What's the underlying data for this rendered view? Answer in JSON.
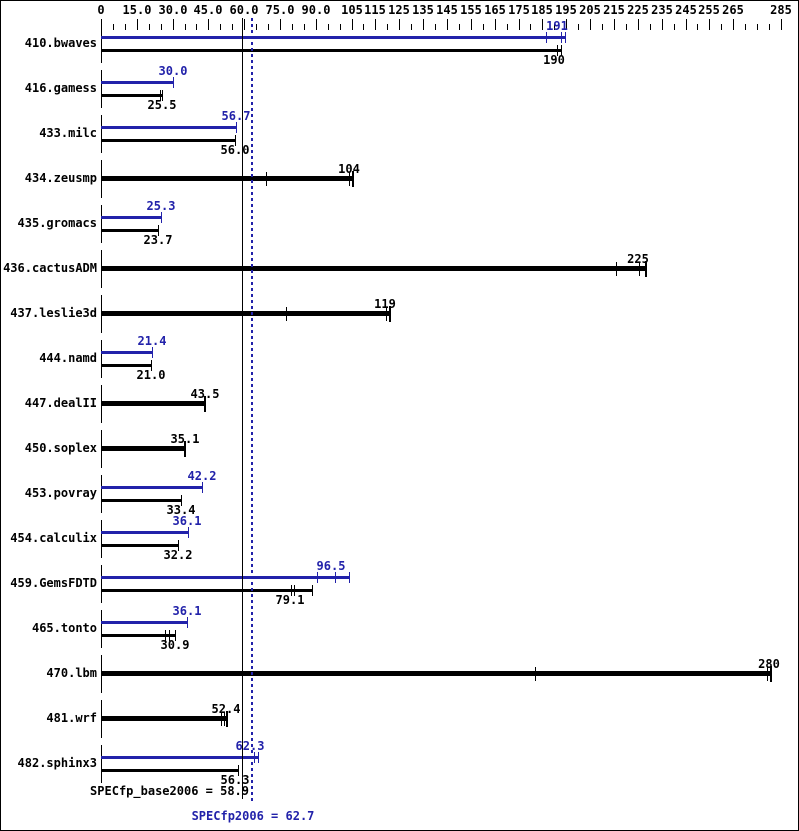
{
  "chart_data": {
    "type": "bar",
    "orientation": "horizontal",
    "suite": "SPECfp2006",
    "accent_blue": "#2222AA",
    "axis": {
      "position": "top",
      "min": 0,
      "max": 285,
      "minor_tick_step": 5,
      "ticks": [
        {
          "v": 0,
          "label": "0"
        },
        {
          "v": 15,
          "label": "15.0"
        },
        {
          "v": 30,
          "label": "30.0"
        },
        {
          "v": 45,
          "label": "45.0"
        },
        {
          "v": 60,
          "label": "60.0"
        },
        {
          "v": 75,
          "label": "75.0"
        },
        {
          "v": 90,
          "label": "90.0"
        },
        {
          "v": 105,
          "label": "105"
        },
        {
          "v": 115,
          "label": "115"
        },
        {
          "v": 125,
          "label": "125"
        },
        {
          "v": 135,
          "label": "135"
        },
        {
          "v": 145,
          "label": "145"
        },
        {
          "v": 155,
          "label": "155"
        },
        {
          "v": 165,
          "label": "165"
        },
        {
          "v": 175,
          "label": "175"
        },
        {
          "v": 185,
          "label": "185"
        },
        {
          "v": 195,
          "label": "195"
        },
        {
          "v": 205,
          "label": "205"
        },
        {
          "v": 215,
          "label": "215"
        },
        {
          "v": 225,
          "label": "225"
        },
        {
          "v": 235,
          "label": "235"
        },
        {
          "v": 245,
          "label": "245"
        },
        {
          "v": 255,
          "label": "255"
        },
        {
          "v": 265,
          "label": "265"
        },
        {
          "v": 285,
          "label": "285"
        }
      ]
    },
    "series": [
      {
        "key": "peak",
        "color": "#2222AA"
      },
      {
        "key": "base",
        "color": "#000000"
      }
    ],
    "benchmarks": [
      {
        "name": "410.bwaves",
        "peak": {
          "value": "191",
          "end": 194.5,
          "marks": [
            186.5,
            192.8
          ]
        },
        "base": {
          "value": "190",
          "end": 193,
          "marks": [
            191.3
          ]
        }
      },
      {
        "name": "416.gamess",
        "peak": {
          "value": "30.0",
          "end": 30.0,
          "marks": []
        },
        "base": {
          "value": "25.5",
          "end": 25.7,
          "marks": [
            24.9
          ]
        }
      },
      {
        "name": "433.milc",
        "peak": {
          "value": "56.7",
          "end": 56.7,
          "marks": []
        },
        "base": {
          "value": "56.0",
          "end": 56.2,
          "marks": []
        }
      },
      {
        "name": "434.zeusmp",
        "base": {
          "value": "104",
          "end": 105.5,
          "marks": [
            69.3,
            103.8
          ]
        }
      },
      {
        "name": "435.gromacs",
        "peak": {
          "value": "25.3",
          "end": 25.3,
          "marks": []
        },
        "base": {
          "value": "23.7",
          "end": 23.7,
          "marks": []
        }
      },
      {
        "name": "436.cactusADM",
        "base": {
          "value": "225",
          "end": 228.5,
          "marks": [
            216,
            225.3
          ]
        }
      },
      {
        "name": "437.leslie3d",
        "base": {
          "value": "119",
          "end": 121,
          "marks": [
            77.5,
            119.3
          ]
        }
      },
      {
        "name": "444.namd",
        "peak": {
          "value": "21.4",
          "end": 21.4,
          "marks": []
        },
        "base": {
          "value": "21.0",
          "end": 21.0,
          "marks": []
        }
      },
      {
        "name": "447.dealII",
        "base": {
          "value": "43.5",
          "end": 43.5,
          "marks": []
        }
      },
      {
        "name": "450.soplex",
        "base": {
          "value": "35.1",
          "end": 35.1,
          "marks": []
        }
      },
      {
        "name": "453.povray",
        "peak": {
          "value": "42.2",
          "end": 42.4,
          "marks": []
        },
        "base": {
          "value": "33.4",
          "end": 33.5,
          "marks": []
        }
      },
      {
        "name": "454.calculix",
        "peak": {
          "value": "36.1",
          "end": 36.3,
          "marks": []
        },
        "base": {
          "value": "32.2",
          "end": 32.2,
          "marks": []
        }
      },
      {
        "name": "459.GemsFDTD",
        "peak": {
          "value": "96.5",
          "end": 104,
          "marks": [
            90.5,
            98
          ]
        },
        "base": {
          "value": "79.1",
          "end": 88.5,
          "marks": [
            79.5,
            81
          ]
        }
      },
      {
        "name": "465.tonto",
        "peak": {
          "value": "36.1",
          "end": 36.1,
          "marks": []
        },
        "base": {
          "value": "30.9",
          "end": 30.9,
          "marks": [
            26.8,
            28.3
          ]
        }
      },
      {
        "name": "470.lbm",
        "base": {
          "value": "280",
          "end": 280.8,
          "marks": [
            182,
            279
          ]
        }
      },
      {
        "name": "481.wrf",
        "base": {
          "value": "52.4",
          "end": 52.8,
          "marks": [
            50.3,
            51.5
          ]
        }
      },
      {
        "name": "482.sphinx3",
        "peak": {
          "value": "62.3",
          "end": 66.0,
          "marks": [
            64.2
          ]
        },
        "base": {
          "value": "56.3",
          "end": 57.3,
          "marks": []
        }
      }
    ],
    "reference_lines": [
      {
        "label": "SPECfp_base2006 = 58.9",
        "value": 58.9,
        "style": "solid",
        "color": "#000000"
      },
      {
        "label": "SPECfp2006 = 62.7",
        "value": 62.7,
        "style": "dotted",
        "color": "#2222AA"
      }
    ]
  }
}
